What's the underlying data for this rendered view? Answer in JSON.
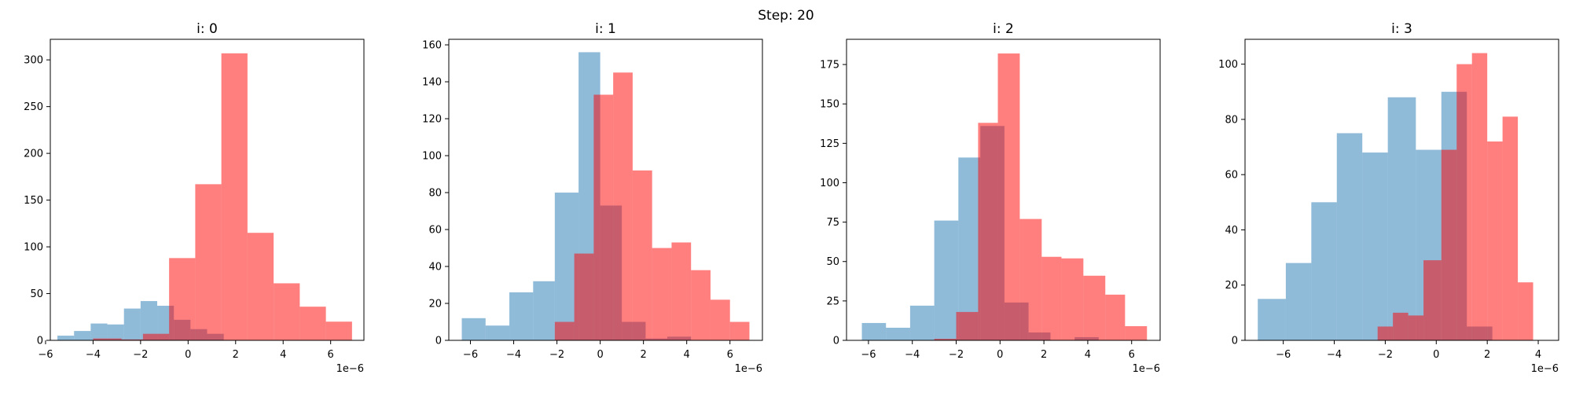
{
  "figure": {
    "suptitle": "Step: 20",
    "colors": {
      "series_a": "#1f77b4",
      "series_b": "#ff0000"
    },
    "opacity": 0.5
  },
  "chart_data": [
    {
      "type": "histogram",
      "title": "i: 0",
      "xlim": [
        -5.8e-06,
        7.4e-06
      ],
      "ylim": [
        0,
        322
      ],
      "x_ticks": [
        -6e-06,
        -4e-06,
        -2e-06,
        0,
        2e-06,
        4e-06,
        6e-06
      ],
      "x_tick_labels": [
        "−6",
        "−4",
        "−2",
        "0",
        "2",
        "4",
        "6"
      ],
      "x_offset_label": "1e−6",
      "y_ticks": [
        0,
        50,
        100,
        150,
        200,
        250,
        300
      ],
      "series": [
        {
          "color": "series_a",
          "bins": [
            [
              -5.5e-06,
              -4.8e-06,
              5
            ],
            [
              -4.8e-06,
              -4.1e-06,
              10
            ],
            [
              -4.1e-06,
              -3.4e-06,
              18
            ],
            [
              -3.4e-06,
              -2.7e-06,
              17
            ],
            [
              -2.7e-06,
              -2e-06,
              34
            ],
            [
              -2e-06,
              -1.3e-06,
              42
            ],
            [
              -1.3e-06,
              -6e-07,
              37
            ],
            [
              -6e-07,
              1e-07,
              22
            ],
            [
              1e-07,
              8e-07,
              12
            ],
            [
              8e-07,
              1.5e-06,
              7
            ]
          ]
        },
        {
          "color": "series_b",
          "bins": [
            [
              -4e-06,
              -2.8e-06,
              2
            ],
            [
              -2.8e-06,
              -1.9e-06,
              1
            ],
            [
              -1.9e-06,
              -8e-07,
              7
            ],
            [
              -8e-07,
              3e-07,
              88
            ],
            [
              3e-07,
              1.4e-06,
              167
            ],
            [
              1.4e-06,
              2.5e-06,
              307
            ],
            [
              2.5e-06,
              3.6e-06,
              115
            ],
            [
              3.6e-06,
              4.7e-06,
              61
            ],
            [
              4.7e-06,
              5.8e-06,
              36
            ],
            [
              5.8e-06,
              6.9e-06,
              20
            ]
          ]
        }
      ]
    },
    {
      "type": "histogram",
      "title": "i: 1",
      "xlim": [
        -7e-06,
        7.5e-06
      ],
      "ylim": [
        0,
        163
      ],
      "x_ticks": [
        -6e-06,
        -4e-06,
        -2e-06,
        0,
        2e-06,
        4e-06,
        6e-06
      ],
      "x_tick_labels": [
        "−6",
        "−4",
        "−2",
        "0",
        "2",
        "4",
        "6"
      ],
      "x_offset_label": "1e−6",
      "y_ticks": [
        0,
        20,
        40,
        60,
        80,
        100,
        120,
        140,
        160
      ],
      "series": [
        {
          "color": "series_a",
          "bins": [
            [
              -6.4e-06,
              -5.3e-06,
              12
            ],
            [
              -5.3e-06,
              -4.2e-06,
              8
            ],
            [
              -4.2e-06,
              -3.1e-06,
              26
            ],
            [
              -3.1e-06,
              -2.1e-06,
              32
            ],
            [
              -2.1e-06,
              -1e-06,
              80
            ],
            [
              -1e-06,
              0.0,
              156
            ],
            [
              0.0,
              1e-06,
              73
            ],
            [
              1e-06,
              2.1e-06,
              10
            ],
            [
              2.1e-06,
              3.1e-06,
              1
            ],
            [
              3.1e-06,
              4.2e-06,
              2
            ]
          ]
        },
        {
          "color": "series_b",
          "bins": [
            [
              -2.1e-06,
              -1.2e-06,
              10
            ],
            [
              -1.2e-06,
              -3e-07,
              47
            ],
            [
              -3e-07,
              6e-07,
              133
            ],
            [
              6e-07,
              1.5e-06,
              145
            ],
            [
              1.5e-06,
              2.4e-06,
              92
            ],
            [
              2.4e-06,
              3.3e-06,
              50
            ],
            [
              3.3e-06,
              4.2e-06,
              53
            ],
            [
              4.2e-06,
              5.1e-06,
              38
            ],
            [
              5.1e-06,
              6e-06,
              22
            ],
            [
              6e-06,
              6.9e-06,
              10
            ]
          ]
        }
      ]
    },
    {
      "type": "histogram",
      "title": "i: 2",
      "xlim": [
        -7e-06,
        7.3e-06
      ],
      "ylim": [
        0,
        191
      ],
      "x_ticks": [
        -6e-06,
        -4e-06,
        -2e-06,
        0,
        2e-06,
        4e-06,
        6e-06
      ],
      "x_tick_labels": [
        "−6",
        "−4",
        "−2",
        "0",
        "2",
        "4",
        "6"
      ],
      "x_offset_label": "1e−6",
      "y_ticks": [
        0,
        25,
        50,
        75,
        100,
        125,
        150,
        175
      ],
      "series": [
        {
          "color": "series_a",
          "bins": [
            [
              -6.3e-06,
              -5.2e-06,
              11
            ],
            [
              -5.2e-06,
              -4.1e-06,
              8
            ],
            [
              -4.1e-06,
              -3e-06,
              22
            ],
            [
              -3e-06,
              -1.9e-06,
              76
            ],
            [
              -1.9e-06,
              -9e-07,
              116
            ],
            [
              -9e-07,
              2e-07,
              136
            ],
            [
              2e-07,
              1.3e-06,
              24
            ],
            [
              1.3e-06,
              2.3e-06,
              5
            ],
            [
              2.3e-06,
              3.4e-06,
              0
            ],
            [
              3.4e-06,
              4.5e-06,
              2
            ]
          ]
        },
        {
          "color": "series_b",
          "bins": [
            [
              -3e-06,
              -2e-06,
              1
            ],
            [
              -2e-06,
              -1e-06,
              18
            ],
            [
              -1e-06,
              -1e-07,
              138
            ],
            [
              -1e-07,
              9e-07,
              182
            ],
            [
              9e-07,
              1.9e-06,
              77
            ],
            [
              1.9e-06,
              2.8e-06,
              53
            ],
            [
              2.8e-06,
              3.8e-06,
              52
            ],
            [
              3.8e-06,
              4.8e-06,
              41
            ],
            [
              4.8e-06,
              5.7e-06,
              29
            ],
            [
              5.7e-06,
              6.7e-06,
              9
            ]
          ]
        }
      ]
    },
    {
      "type": "histogram",
      "title": "i: 3",
      "xlim": [
        -7.5e-06,
        4.8e-06
      ],
      "ylim": [
        0,
        109
      ],
      "x_ticks": [
        -6e-06,
        -4e-06,
        -2e-06,
        0,
        2e-06,
        4e-06
      ],
      "x_tick_labels": [
        "−6",
        "−4",
        "−2",
        "0",
        "2",
        "4"
      ],
      "x_offset_label": "1e−6",
      "y_ticks": [
        0,
        20,
        40,
        60,
        80,
        100
      ],
      "series": [
        {
          "color": "series_a",
          "bins": [
            [
              -7e-06,
              -5.9e-06,
              15
            ],
            [
              -5.9e-06,
              -4.9e-06,
              28
            ],
            [
              -4.9e-06,
              -3.9e-06,
              50
            ],
            [
              -3.9e-06,
              -2.9e-06,
              75
            ],
            [
              -2.9e-06,
              -1.9e-06,
              68
            ],
            [
              -1.9e-06,
              -8e-07,
              88
            ],
            [
              -8e-07,
              2e-07,
              69
            ],
            [
              2e-07,
              1.2e-06,
              90
            ],
            [
              1.2e-06,
              2.2e-06,
              5
            ],
            [
              2.2e-06,
              3.2e-06,
              0
            ]
          ]
        },
        {
          "color": "series_b",
          "bins": [
            [
              -2.3e-06,
              -1.7e-06,
              5
            ],
            [
              -1.7e-06,
              -1.1e-06,
              10
            ],
            [
              -1.1e-06,
              -5e-07,
              9
            ],
            [
              -5e-07,
              2e-07,
              29
            ],
            [
              2e-07,
              8e-07,
              69
            ],
            [
              8e-07,
              1.4e-06,
              100
            ],
            [
              1.4e-06,
              2e-06,
              104
            ],
            [
              2e-06,
              2.6e-06,
              72
            ],
            [
              2.6e-06,
              3.2e-06,
              81
            ],
            [
              3.2e-06,
              3.8e-06,
              21
            ]
          ]
        }
      ]
    }
  ]
}
